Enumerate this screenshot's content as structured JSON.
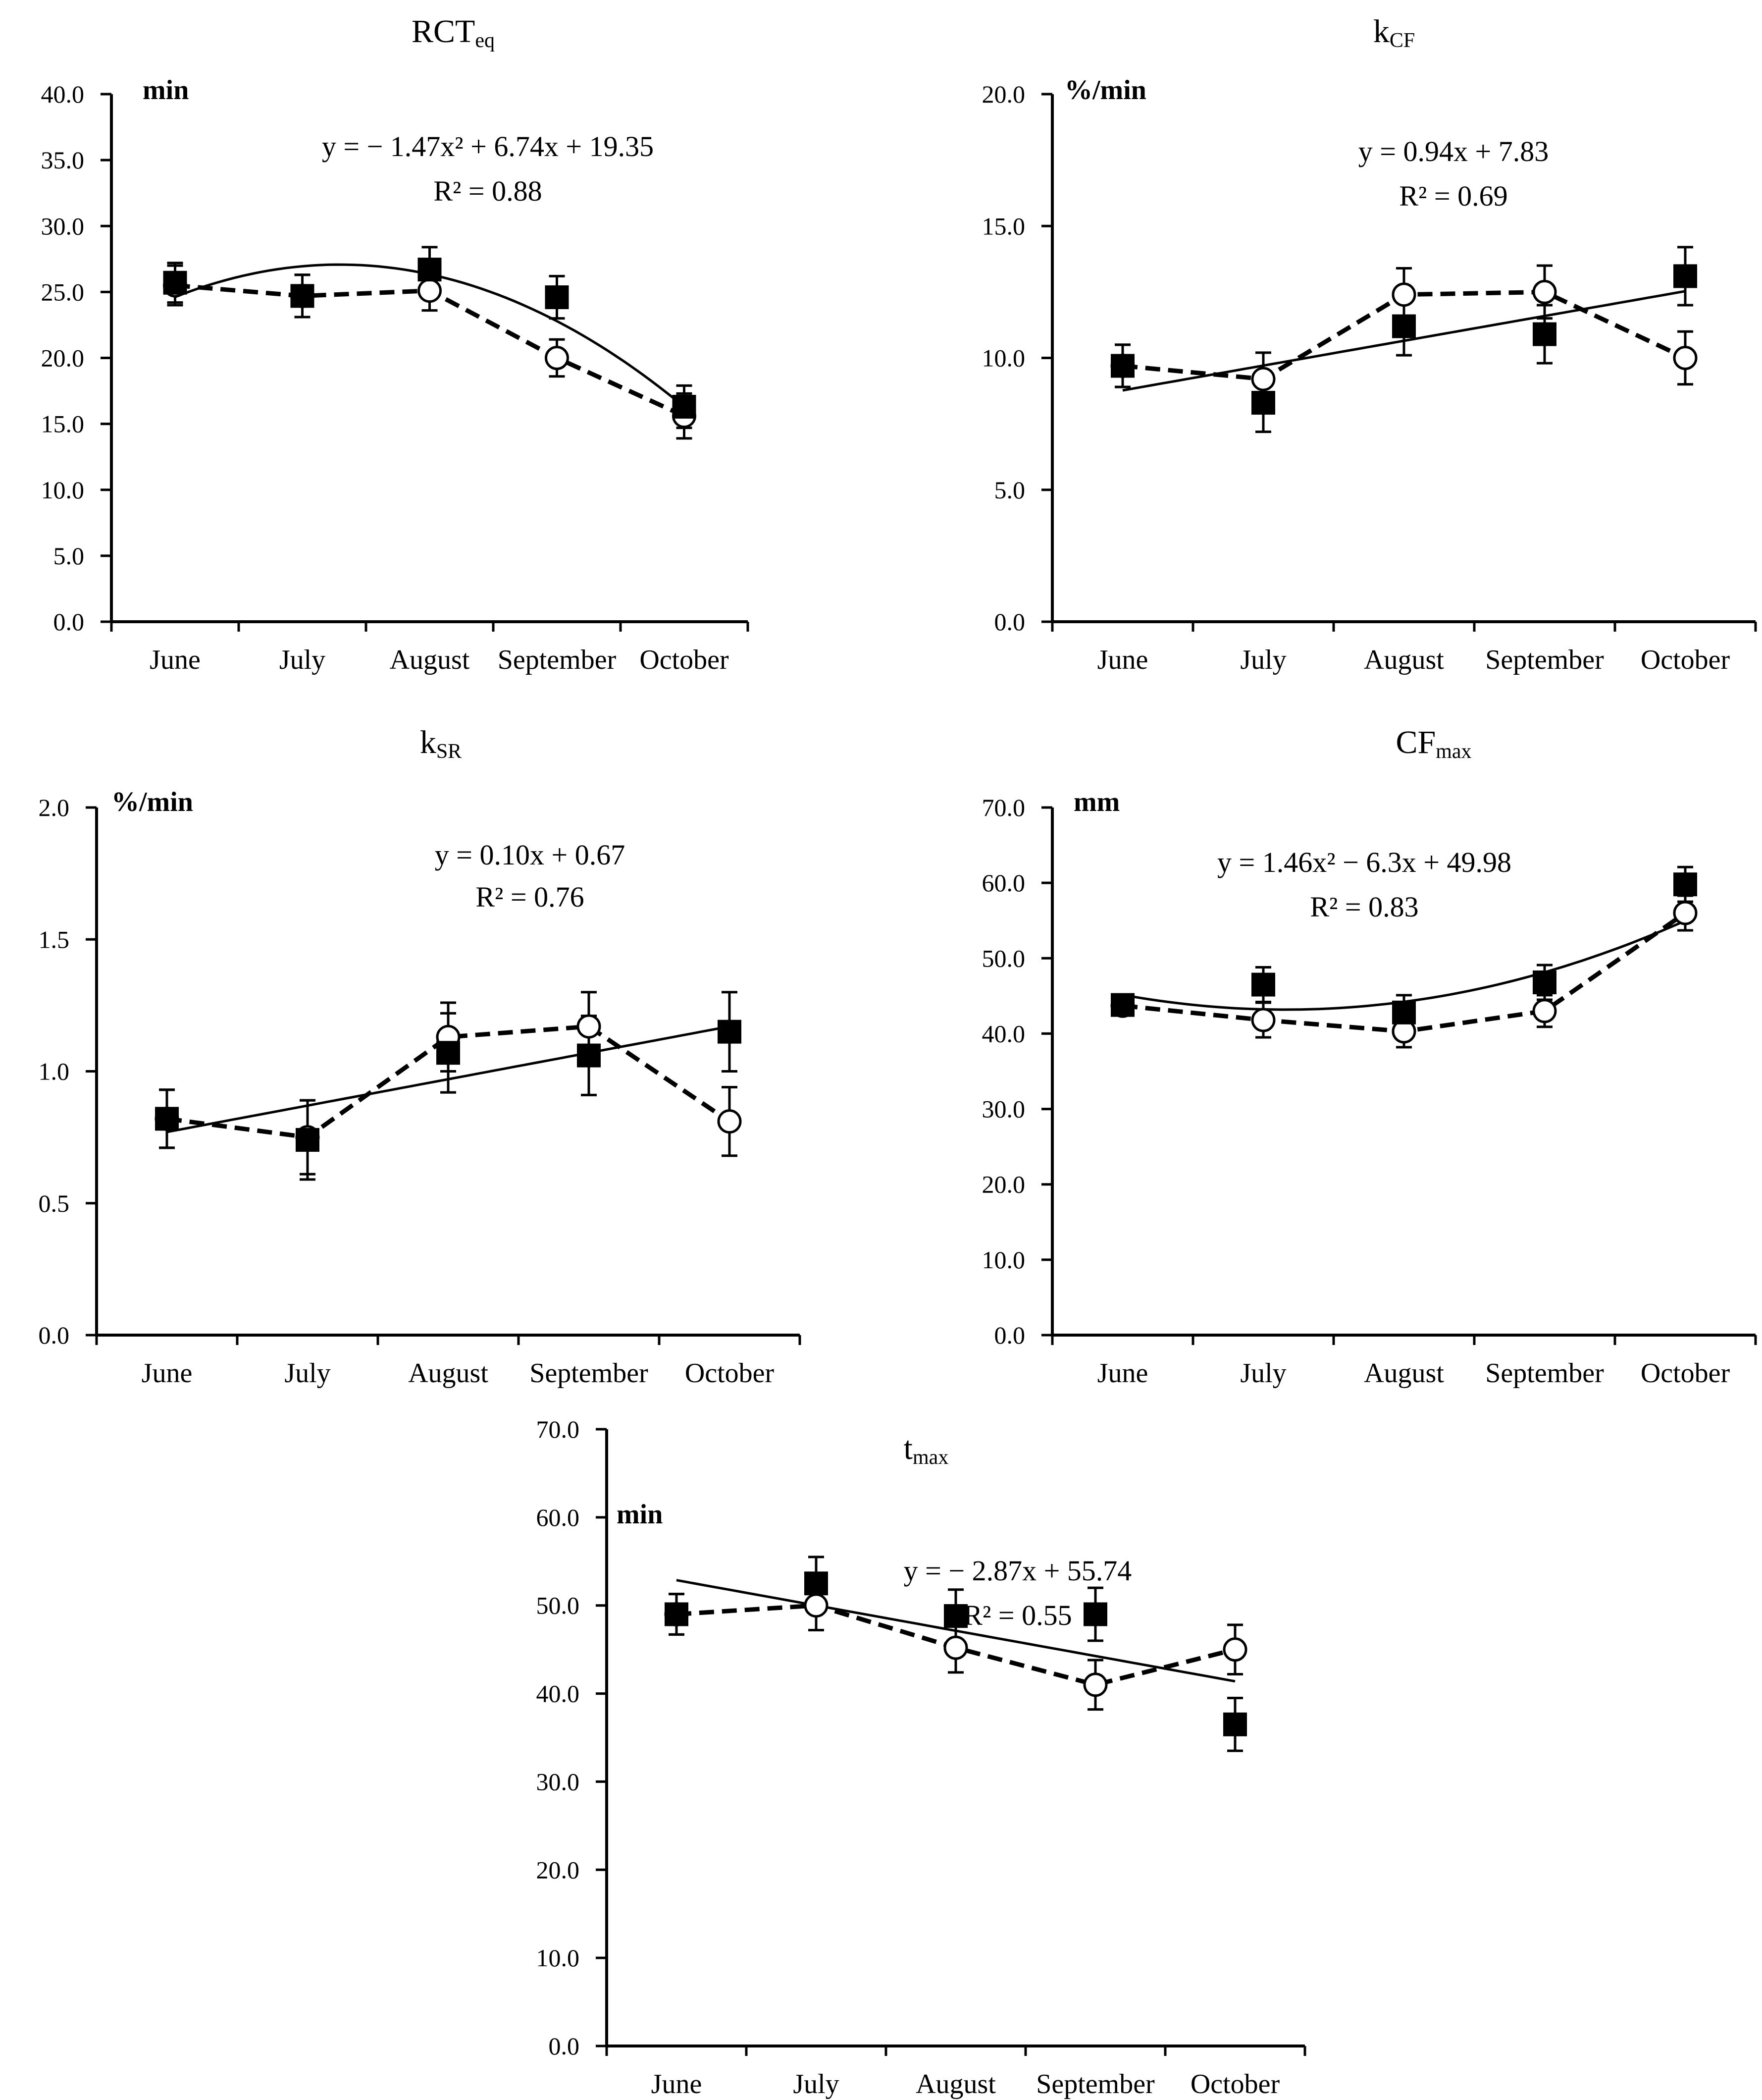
{
  "chart_data": [
    {
      "type": "line",
      "title": "RCT",
      "title_sub": "eq",
      "ylabel": "min",
      "ylim": [
        0,
        40
      ],
      "ytick_step": 5,
      "ytick_labels": [
        "0.0",
        "5.0",
        "10.0",
        "15.0",
        "20.0",
        "25.0",
        "30.0",
        "35.0",
        "40.0"
      ],
      "categories": [
        "June",
        "July",
        "August",
        "September",
        "October"
      ],
      "equation": "y = − 1.47x² + 6.74x + 19.35",
      "r2": "R² = 0.88",
      "trend": {
        "kind": "poly2",
        "coef": [
          -1.47,
          6.74,
          19.35
        ]
      },
      "series": [
        {
          "name": "filled squares",
          "marker": "square",
          "values": [
            25.7,
            24.7,
            26.7,
            24.6,
            16.3
          ],
          "errors": [
            1.5,
            1.6,
            1.7,
            1.6,
            1.6
          ]
        },
        {
          "name": "open circles (dashed)",
          "marker": "circle",
          "values": [
            25.5,
            24.7,
            25.1,
            20.0,
            15.6
          ],
          "errors": [
            1.5,
            1.6,
            1.5,
            1.4,
            1.7
          ]
        }
      ]
    },
    {
      "type": "line",
      "title": "k",
      "title_sub": "CF",
      "ylabel": "%/min",
      "ylim": [
        0,
        20
      ],
      "ytick_step": 5,
      "ytick_labels": [
        "0.0",
        "5.0",
        "10.0",
        "15.0",
        "20.0"
      ],
      "categories": [
        "June",
        "July",
        "August",
        "September",
        "October"
      ],
      "equation": "y = 0.94x + 7.83",
      "r2": "R² = 0.69",
      "trend": {
        "kind": "linear",
        "coef": [
          0.94,
          7.83
        ]
      },
      "series": [
        {
          "name": "filled squares",
          "marker": "square",
          "values": [
            9.7,
            8.3,
            11.2,
            10.9,
            13.1
          ],
          "errors": [
            0.8,
            1.1,
            1.1,
            1.1,
            1.1
          ]
        },
        {
          "name": "open circles (dashed)",
          "marker": "circle",
          "values": [
            9.7,
            9.2,
            12.4,
            12.5,
            10.0
          ],
          "errors": [
            0.8,
            1.0,
            1.0,
            1.0,
            1.0
          ]
        }
      ]
    },
    {
      "type": "line",
      "title": "k",
      "title_sub": "SR",
      "ylabel": "%/min",
      "ylim": [
        0,
        2
      ],
      "ytick_step": 0.5,
      "ytick_labels": [
        "0.0",
        "0.5",
        "1.0",
        "1.5",
        "2.0"
      ],
      "categories": [
        "June",
        "July",
        "August",
        "September",
        "October"
      ],
      "equation": "y = 0.10x + 0.67",
      "r2": "R² = 0.76",
      "trend": {
        "kind": "linear",
        "coef": [
          0.1,
          0.67
        ]
      },
      "series": [
        {
          "name": "filled squares",
          "marker": "square",
          "values": [
            0.82,
            0.74,
            1.07,
            1.06,
            1.15
          ],
          "errors": [
            0.11,
            0.15,
            0.15,
            0.15,
            0.15
          ]
        },
        {
          "name": "open circles (dashed)",
          "marker": "circle",
          "values": [
            0.82,
            0.75,
            1.13,
            1.17,
            0.81
          ],
          "errors": [
            0.11,
            0.14,
            0.13,
            0.13,
            0.13
          ]
        }
      ]
    },
    {
      "type": "line",
      "title": "CF",
      "title_sub": "max",
      "ylabel": "mm",
      "ylim": [
        0,
        70
      ],
      "ytick_step": 10,
      "ytick_labels": [
        "0.0",
        "10.0",
        "20.0",
        "30.0",
        "40.0",
        "50.0",
        "60.0",
        "70.0"
      ],
      "categories": [
        "June",
        "July",
        "August",
        "September",
        "October"
      ],
      "equation": "y = 1.46x² − 6.3x + 49.98",
      "r2": "R² = 0.83",
      "trend": {
        "kind": "poly2",
        "coef": [
          1.46,
          -6.3,
          49.98
        ]
      },
      "series": [
        {
          "name": "filled squares",
          "marker": "square",
          "values": [
            43.8,
            46.5,
            42.8,
            46.8,
            59.8
          ],
          "errors": [
            1.0,
            2.3,
            2.3,
            2.3,
            2.3
          ]
        },
        {
          "name": "open circles (dashed)",
          "marker": "circle",
          "values": [
            43.7,
            41.8,
            40.3,
            43.0,
            56.0
          ],
          "errors": [
            1.0,
            2.3,
            2.1,
            2.1,
            2.3
          ]
        }
      ]
    },
    {
      "type": "line",
      "title": "t",
      "title_sub": "max",
      "ylabel": "min",
      "ylim": [
        0,
        70
      ],
      "ytick_step": 10,
      "ytick_labels": [
        "0.0",
        "10.0",
        "20.0",
        "30.0",
        "40.0",
        "50.0",
        "60.0",
        "70.0"
      ],
      "categories": [
        "June",
        "July",
        "August",
        "September",
        "October"
      ],
      "equation": "y = − 2.87x + 55.74",
      "r2": "R² = 0.55",
      "trend": {
        "kind": "linear",
        "coef": [
          -2.87,
          55.74
        ]
      },
      "series": [
        {
          "name": "filled squares",
          "marker": "square",
          "values": [
            49.0,
            52.5,
            48.8,
            49.0,
            36.5
          ],
          "errors": [
            2.3,
            3.0,
            3.0,
            3.0,
            3.0
          ]
        },
        {
          "name": "open circles (dashed)",
          "marker": "circle",
          "values": [
            49.0,
            50.0,
            45.2,
            41.0,
            45.0
          ],
          "errors": [
            2.3,
            2.8,
            2.8,
            2.8,
            2.8
          ]
        }
      ]
    }
  ]
}
